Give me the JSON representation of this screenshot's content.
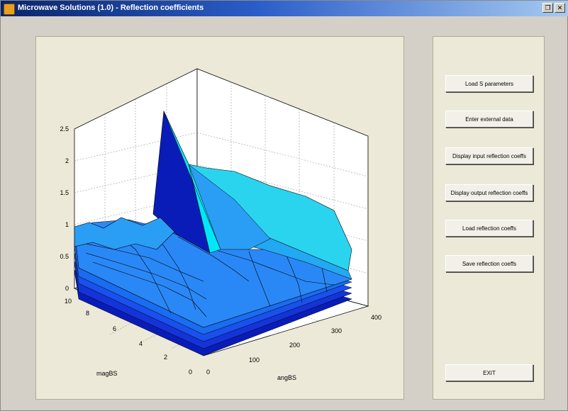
{
  "window": {
    "title": "Microwave Solutions (1.0) - Reflection coefficients",
    "controls": [
      "restore-icon",
      "close-icon"
    ]
  },
  "plot": {
    "xlabel": "angBS",
    "ylabel": "magBS",
    "z_ticks": [
      "0",
      "0.5",
      "1",
      "1.5",
      "2",
      "2.5"
    ],
    "mag_ticks": [
      "10",
      "8",
      "6",
      "4",
      "2",
      "0"
    ],
    "ang_ticks": [
      "0",
      "100",
      "200",
      "300",
      "400"
    ],
    "colors": {
      "dark": "#0a1cb8",
      "mid": "#1a6cf0",
      "light": "#2ad4ee",
      "peak": "#00e8f8"
    }
  },
  "chart_data": {
    "type": "surface",
    "title": "",
    "xlabel": "angBS",
    "ylabel": "magBS",
    "zlabel": "",
    "xlim": [
      0,
      400
    ],
    "ylim": [
      0,
      10
    ],
    "zlim": [
      0,
      2.5
    ],
    "grid": true,
    "note_series": "stacked surfaces, peak reflection ≈ 2.5 near angBS ≈ 180, magBS ≈ 10"
  },
  "buttons": {
    "load_s": "Load S parameters",
    "enter_external": "Enter external data",
    "display_input": "Display input reflection coeffs",
    "display_output": "Display output reflection coeffs",
    "load_reflection": "Load reflection coeffs",
    "save_reflection": "Save reflection coeffs",
    "exit": "EXIT"
  }
}
